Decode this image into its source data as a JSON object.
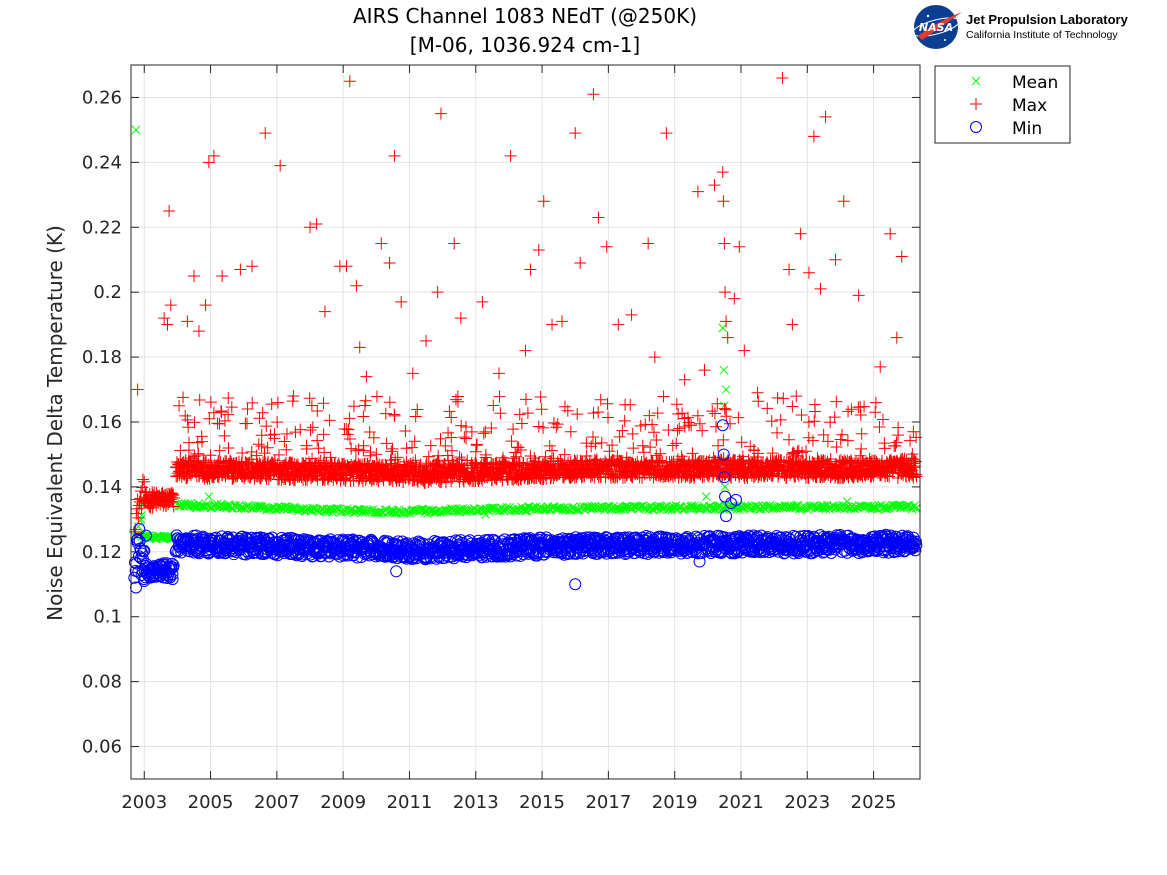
{
  "chart_data": {
    "type": "scatter",
    "title": [
      "AIRS Channel 1083 NEdT (@250K)",
      "[M-06, 1036.924 cm-1]"
    ],
    "xlabel": "",
    "ylabel": "Noise Equivalent Delta Temperature (K)",
    "xlim": [
      2002.6,
      2026.4
    ],
    "ylim": [
      0.05,
      0.27
    ],
    "xticks": [
      2003,
      2005,
      2007,
      2009,
      2011,
      2013,
      2015,
      2017,
      2019,
      2021,
      2023,
      2025
    ],
    "xtick_labels": [
      "2003",
      "2005",
      "2007",
      "2009",
      "2011",
      "2013",
      "2015",
      "2017",
      "2019",
      "2021",
      "2023",
      "2025"
    ],
    "yticks": [
      0.06,
      0.08,
      0.1,
      0.12,
      0.14,
      0.16,
      0.18,
      0.2,
      0.22,
      0.24,
      0.26
    ],
    "ytick_labels": [
      "0.06",
      "0.08",
      "0.1",
      "0.12",
      "0.14",
      "0.16",
      "0.18",
      "0.2",
      "0.22",
      "0.24",
      "0.26"
    ],
    "grid": true,
    "legend_position": "outside top-right",
    "series": [
      {
        "name": "Mean",
        "marker": "x",
        "color": "#00ff00",
        "x": [
          2002.75,
          2002.9,
          2003.0,
          2003.15,
          2003.35,
          2003.6,
          2003.85,
          2004.1,
          2004.5,
          2004.95,
          2005.5,
          2006.5,
          2007.5,
          2008.5,
          2009.5,
          2010.5,
          2011.5,
          2012.5,
          2013.3,
          2014.5,
          2015.5,
          2016.5,
          2017.5,
          2018.5,
          2019.5,
          2019.95,
          2020.3,
          2020.45,
          2020.48,
          2020.5,
          2020.52,
          2020.55,
          2021.0,
          2021.5,
          2022.5,
          2023.5,
          2024.2,
          2025.0,
          2025.8,
          2026.3
        ],
        "y": [
          0.25,
          0.13,
          0.125,
          0.125,
          0.124,
          0.124,
          0.124,
          0.134,
          0.134,
          0.137,
          0.134,
          0.1335,
          0.1333,
          0.133,
          0.1328,
          0.1325,
          0.1328,
          0.133,
          0.1315,
          0.1335,
          0.1335,
          0.134,
          0.1338,
          0.1336,
          0.1337,
          0.137,
          0.1338,
          0.189,
          0.176,
          0.165,
          0.14,
          0.17,
          0.134,
          0.1338,
          0.134,
          0.1342,
          0.1355,
          0.134,
          0.1336,
          0.1336
        ]
      },
      {
        "name": "Max",
        "marker": "+",
        "color": "#ff0000",
        "x": [
          2002.8,
          2003.7,
          2003.8,
          2003.75,
          2003.6,
          2004.05,
          2004.3,
          2004.5,
          2004.65,
          2004.85,
          2004.95,
          2005.1,
          2005.35,
          2005.9,
          2006.25,
          2006.65,
          2007.1,
          2007.5,
          2008.0,
          2008.2,
          2008.45,
          2008.9,
          2009.1,
          2009.2,
          2009.4,
          2009.5,
          2009.7,
          2010.15,
          2010.4,
          2010.55,
          2010.75,
          2011.1,
          2011.5,
          2011.85,
          2011.95,
          2012.35,
          2012.55,
          2013.2,
          2013.7,
          2014.05,
          2014.5,
          2014.65,
          2014.9,
          2015.05,
          2015.3,
          2015.6,
          2016.0,
          2016.15,
          2016.55,
          2016.7,
          2016.95,
          2017.3,
          2017.7,
          2018.2,
          2018.4,
          2018.75,
          2019.3,
          2019.7,
          2019.9,
          2020.2,
          2020.45,
          2020.47,
          2020.5,
          2020.52,
          2020.55,
          2020.6,
          2020.8,
          2020.95,
          2021.1,
          2021.5,
          2022.25,
          2022.45,
          2022.55,
          2022.8,
          2023.05,
          2023.2,
          2023.4,
          2023.55,
          2023.85,
          2024.1,
          2024.55,
          2025.05,
          2025.2,
          2025.5,
          2025.7,
          2025.85,
          2026.2
        ],
        "y": [
          0.17,
          0.19,
          0.196,
          0.225,
          0.192,
          0.165,
          0.191,
          0.205,
          0.188,
          0.196,
          0.24,
          0.242,
          0.205,
          0.207,
          0.208,
          0.249,
          0.239,
          0.168,
          0.22,
          0.221,
          0.194,
          0.208,
          0.208,
          0.265,
          0.202,
          0.183,
          0.174,
          0.215,
          0.209,
          0.242,
          0.197,
          0.175,
          0.185,
          0.2,
          0.255,
          0.215,
          0.192,
          0.197,
          0.175,
          0.242,
          0.182,
          0.207,
          0.213,
          0.228,
          0.19,
          0.191,
          0.249,
          0.209,
          0.261,
          0.223,
          0.214,
          0.19,
          0.193,
          0.215,
          0.18,
          0.249,
          0.173,
          0.231,
          0.176,
          0.233,
          0.237,
          0.228,
          0.215,
          0.2,
          0.191,
          0.186,
          0.198,
          0.214,
          0.182,
          0.169,
          0.266,
          0.207,
          0.19,
          0.218,
          0.206,
          0.248,
          0.201,
          0.254,
          0.21,
          0.228,
          0.199,
          0.163,
          0.177,
          0.218,
          0.186,
          0.211,
          0.157
        ]
      },
      {
        "name": "Min",
        "marker": "o",
        "color": "#0000ff",
        "x": [
          2002.7,
          2002.75,
          2002.8,
          2002.85,
          2002.9,
          2002.95,
          2003.0,
          2003.05,
          2003.3,
          2003.6,
          2003.85,
          2004.2,
          2004.6,
          2005.2,
          2006.2,
          2007.3,
          2008.3,
          2009.3,
          2010.3,
          2010.6,
          2011.3,
          2012.3,
          2013.3,
          2014.3,
          2015.3,
          2016.0,
          2016.5,
          2017.5,
          2018.5,
          2019.5,
          2019.75,
          2020.4,
          2020.45,
          2020.48,
          2020.5,
          2020.52,
          2020.55,
          2020.7,
          2020.85,
          2021.5,
          2022.5,
          2023.5,
          2024.5,
          2025.5,
          2026.2
        ],
        "y": [
          0.112,
          0.109,
          0.124,
          0.127,
          0.118,
          0.114,
          0.111,
          0.125,
          0.115,
          0.114,
          0.113,
          0.123,
          0.121,
          0.121,
          0.12,
          0.12,
          0.12,
          0.119,
          0.119,
          0.114,
          0.12,
          0.121,
          0.121,
          0.121,
          0.121,
          0.11,
          0.121,
          0.122,
          0.122,
          0.122,
          0.117,
          0.122,
          0.159,
          0.15,
          0.143,
          0.137,
          0.131,
          0.135,
          0.136,
          0.122,
          0.122,
          0.122,
          0.122,
          0.123,
          0.123
        ]
      }
    ],
    "band_density": [
      {
        "series": "Mean",
        "segments": [
          {
            "x": [
              2002.72,
              2003.0
            ],
            "y": [
              0.124,
              0.134
            ],
            "spread": 0.002,
            "step": 0.05
          },
          {
            "x": [
              2003.0,
              2003.9
            ],
            "y": [
              0.1245,
              0.1245
            ],
            "spread": 0.0005,
            "step": 0.03
          },
          {
            "x": [
              2004.0,
              2009.5
            ],
            "y": [
              0.1345,
              0.1325
            ],
            "spread": 0.0007,
            "step": 0.04
          },
          {
            "x": [
              2009.5,
              2011.5
            ],
            "y": [
              0.1325,
              0.1325
            ],
            "spread": 0.0007,
            "step": 0.04
          },
          {
            "x": [
              2011.5,
              2016.0
            ],
            "y": [
              0.1325,
              0.1335
            ],
            "spread": 0.0007,
            "step": 0.04
          },
          {
            "x": [
              2016.0,
              2026.3
            ],
            "y": [
              0.1335,
              0.1338
            ],
            "spread": 0.0007,
            "step": 0.04
          }
        ]
      },
      {
        "series": "Max",
        "segments": [
          {
            "x": [
              2002.72,
              2003.0
            ],
            "y": [
              0.13,
              0.14
            ],
            "spread": 0.004,
            "step": 0.02
          },
          {
            "x": [
              2003.0,
              2003.9
            ],
            "y": [
              0.136,
              0.136
            ],
            "spread": 0.0025,
            "step": 0.012
          },
          {
            "x": [
              2003.95,
              2009.5
            ],
            "y": [
              0.1455,
              0.1445
            ],
            "spread": 0.0028,
            "step": 0.012
          },
          {
            "x": [
              2009.5,
              2011.5
            ],
            "y": [
              0.1445,
              0.144
            ],
            "spread": 0.0028,
            "step": 0.012
          },
          {
            "x": [
              2011.5,
              2016.0
            ],
            "y": [
              0.144,
              0.1455
            ],
            "spread": 0.0028,
            "step": 0.012
          },
          {
            "x": [
              2016.0,
              2026.3
            ],
            "y": [
              0.1455,
              0.1455
            ],
            "spread": 0.0028,
            "step": 0.012
          }
        ]
      },
      {
        "series": "Min",
        "segments": [
          {
            "x": [
              2002.72,
              2003.0
            ],
            "y": [
              0.118,
              0.118
            ],
            "spread": 0.006,
            "step": 0.02
          },
          {
            "x": [
              2003.0,
              2003.9
            ],
            "y": [
              0.114,
              0.114
            ],
            "spread": 0.0025,
            "step": 0.015
          },
          {
            "x": [
              2003.95,
              2009.5
            ],
            "y": [
              0.1225,
              0.121
            ],
            "spread": 0.0028,
            "step": 0.015
          },
          {
            "x": [
              2009.5,
              2011.5
            ],
            "y": [
              0.121,
              0.1205
            ],
            "spread": 0.0028,
            "step": 0.015
          },
          {
            "x": [
              2011.5,
              2016.0
            ],
            "y": [
              0.1205,
              0.122
            ],
            "spread": 0.0028,
            "step": 0.015
          },
          {
            "x": [
              2016.0,
              2026.3
            ],
            "y": [
              0.122,
              0.1225
            ],
            "spread": 0.0028,
            "step": 0.015
          }
        ]
      }
    ],
    "scatter_noise": [
      {
        "series": "Max",
        "x": [
          2004.0,
          2026.3
        ],
        "y": [
          0.147,
          0.168
        ],
        "count": 420,
        "seed": 7
      }
    ]
  },
  "logo": {
    "badge_text": "NASA",
    "line1": "Jet Propulsion Laboratory",
    "line2": "California Institute of Technology"
  }
}
